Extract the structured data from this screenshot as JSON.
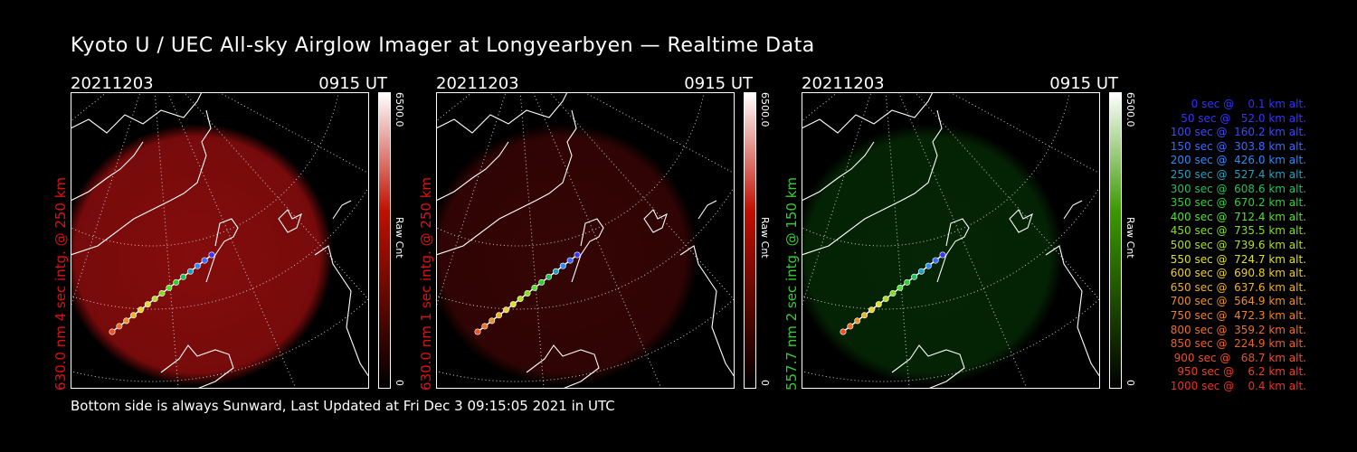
{
  "title": "Kyoto U / UEC All-sky Airglow Imager at Longyearbyen — Realtime Data",
  "footer": "Bottom side is always Sunward, Last Updated at Fri Dec  3 09:15:05 2021 in UTC",
  "panels": [
    {
      "date": "20211203",
      "time": "0915 UT",
      "label": "630.0 nm 4 sec intg. @ 250 km",
      "label_color": "#e01010",
      "cbar_max": "6500.0",
      "cbar_min": "0",
      "cbar_unit": "Raw Cnt",
      "cbar_color": "#c01000",
      "glow_color": "#b01010",
      "glow_intensity": 0.75
    },
    {
      "date": "20211203",
      "time": "0915 UT",
      "label": "630.0 nm 1 sec intg. @ 250 km",
      "label_color": "#e01010",
      "cbar_max": "6500.0",
      "cbar_min": "0",
      "cbar_unit": "Raw Cnt",
      "cbar_color": "#c01000",
      "glow_color": "#b01010",
      "glow_intensity": 0.3
    },
    {
      "date": "20211203",
      "time": "0915 UT",
      "label": "557.7 nm 2 sec intg. @ 150 km",
      "label_color": "#30d030",
      "cbar_max": "6500.0",
      "cbar_min": "0",
      "cbar_unit": "Raw Cnt",
      "cbar_color": "#3a9a00",
      "glow_color": "#0e6a0e",
      "glow_intensity": 0.35
    }
  ],
  "legend": [
    {
      "text": "   0 sec @    0.1 km alt.",
      "color": "#3030ff"
    },
    {
      "text": "  50 sec @   52.0 km alt.",
      "color": "#3535ff"
    },
    {
      "text": " 100 sec @  160.2 km alt.",
      "color": "#3a4aff"
    },
    {
      "text": " 150 sec @  303.8 km alt.",
      "color": "#3a6aff"
    },
    {
      "text": " 200 sec @  426.0 km alt.",
      "color": "#2a8aff"
    },
    {
      "text": " 250 sec @  527.4 km alt.",
      "color": "#20a0c0"
    },
    {
      "text": " 300 sec @  608.6 km alt.",
      "color": "#20c060"
    },
    {
      "text": " 350 sec @  670.2 km alt.",
      "color": "#30d030"
    },
    {
      "text": " 400 sec @  712.4 km alt.",
      "color": "#50e030"
    },
    {
      "text": " 450 sec @  735.5 km alt.",
      "color": "#80e020"
    },
    {
      "text": " 500 sec @  739.6 km alt.",
      "color": "#b0e020"
    },
    {
      "text": " 550 sec @  724.7 km alt.",
      "color": "#e0e020"
    },
    {
      "text": " 600 sec @  690.8 km alt.",
      "color": "#f0d020"
    },
    {
      "text": " 650 sec @  637.6 km alt.",
      "color": "#f0b020"
    },
    {
      "text": " 700 sec @  564.9 km alt.",
      "color": "#f09020"
    },
    {
      "text": " 750 sec @  472.3 km alt.",
      "color": "#f08020"
    },
    {
      "text": " 800 sec @  359.2 km alt.",
      "color": "#f07020"
    },
    {
      "text": " 850 sec @  224.9 km alt.",
      "color": "#f06020"
    },
    {
      "text": " 900 sec @   68.7 km alt.",
      "color": "#f05020"
    },
    {
      "text": " 950 sec @    6.2 km alt.",
      "color": "#f04020"
    },
    {
      "text": "1000 sec @    0.4 km alt.",
      "color": "#f03020"
    }
  ]
}
